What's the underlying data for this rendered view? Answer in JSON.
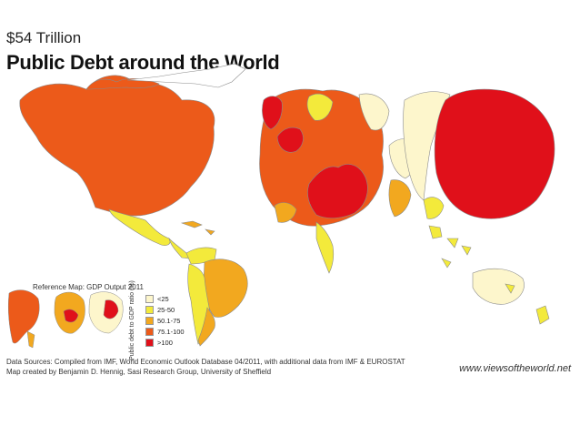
{
  "header": {
    "subtitle": "$54 Trillion",
    "title": "Public Debt around the World"
  },
  "reference_map": {
    "title": "Reference Map: GDP Output 2011"
  },
  "legend": {
    "axis_label": "Public debt to GDP ratio (%)",
    "items": [
      {
        "label": "<25",
        "color": "#fdf6cc"
      },
      {
        "label": "25-50",
        "color": "#f3ea3b"
      },
      {
        "label": "50.1-75",
        "color": "#f2a81f"
      },
      {
        "label": "75.1-100",
        "color": "#ec5a1a"
      },
      {
        "label": ">100",
        "color": "#e0101a"
      }
    ]
  },
  "footer": {
    "source_line1": "Data Sources: Compiled from IMF, World Economic Outlook Database 04/2011, with additional data from IMF & EUROSTAT",
    "source_line2": "Map created by Benjamin D. Hennig, Sasi Research Group, University of Sheffield",
    "website": "www.viewsoftheworld.net"
  },
  "colors": {
    "lt25": "#fdf6cc",
    "r25_50": "#f3ea3b",
    "r50_75": "#f2a81f",
    "r75_100": "#ec5a1a",
    "gt100": "#e0101a",
    "outline": "#8a8a8a"
  }
}
